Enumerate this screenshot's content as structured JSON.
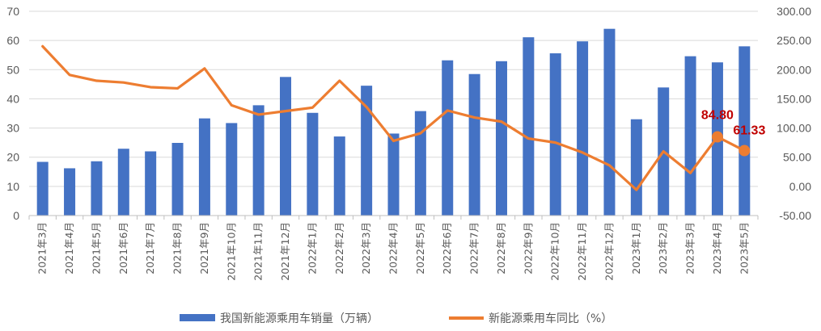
{
  "chart_data": {
    "type": "bar",
    "categories": [
      "2021年3月",
      "2021年4月",
      "2021年5月",
      "2021年6月",
      "2021年7月",
      "2021年8月",
      "2021年9月",
      "2021年10月",
      "2021年11月",
      "2021年12月",
      "2022年1月",
      "2022年2月",
      "2022年3月",
      "2022年4月",
      "2022年5月",
      "2022年6月",
      "2022年7月",
      "2022年8月",
      "2022年9月",
      "2022年10月",
      "2022年11月",
      "2022年12月",
      "2023年1月",
      "2023年2月",
      "2023年3月",
      "2023年4月",
      "2023年5月"
    ],
    "series": [
      {
        "name": "我国新能源乘用车销量（万辆）",
        "type": "bar",
        "axis": "left",
        "color": "#4472C4",
        "values": [
          18.4,
          16.2,
          18.6,
          22.9,
          22.0,
          24.9,
          33.3,
          31.7,
          37.8,
          47.5,
          35.2,
          27.1,
          44.5,
          28.1,
          35.8,
          53.2,
          48.5,
          52.9,
          61.1,
          55.6,
          59.7,
          64.0,
          33.0,
          43.9,
          54.6,
          52.5,
          58.0
        ]
      },
      {
        "name": "新能源乘用车同比（%）",
        "type": "line",
        "axis": "right",
        "color": "#ED7D31",
        "values": [
          240.0,
          191.0,
          181.0,
          178.0,
          170.0,
          168.0,
          202.0,
          139.0,
          123.0,
          129.0,
          135.0,
          181.0,
          136.0,
          78.0,
          91.0,
          130.0,
          118.0,
          111.0,
          82.0,
          75.0,
          58.0,
          36.0,
          -6.0,
          60.0,
          23.0,
          84.8,
          61.33
        ]
      }
    ],
    "data_labels": [
      {
        "series": 1,
        "index": 25,
        "text": "84.80"
      },
      {
        "series": 1,
        "index": 26,
        "text": "61.33"
      }
    ],
    "left_axis": {
      "min": 0,
      "max": 70,
      "step": 10,
      "tick_labels": [
        "0",
        "10",
        "20",
        "30",
        "40",
        "50",
        "60",
        "70"
      ]
    },
    "right_axis": {
      "min": -50,
      "max": 300,
      "step": 50,
      "tick_labels": [
        "-50.00",
        "0.00",
        "50.00",
        "100.00",
        "150.00",
        "200.00",
        "250.00",
        "300.00"
      ]
    },
    "grid": true,
    "legend_position": "bottom"
  }
}
